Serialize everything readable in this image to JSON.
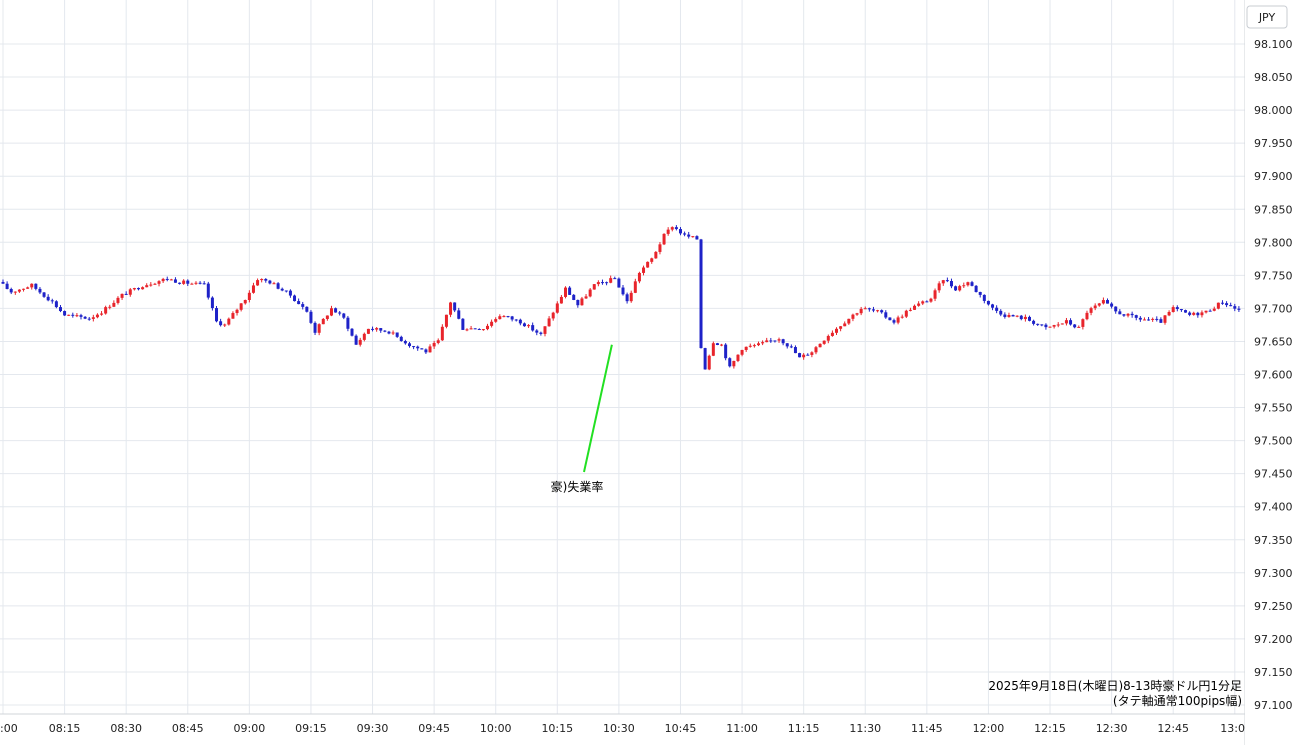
{
  "chart_data": {
    "type": "candlestick",
    "title": "",
    "currency_label": "JPY",
    "caption_line1": "2025年9月18日(木曜日)8-13時豪ドル円1分足",
    "caption_line2": "(タテ軸通常100pips幅)",
    "annotation": "豪)失業率",
    "ylim": [
      97.1,
      98.1
    ],
    "y_ticks": [
      "98.100",
      "98.050",
      "98.000",
      "97.950",
      "97.900",
      "97.850",
      "97.800",
      "97.750",
      "97.700",
      "97.650",
      "97.600",
      "97.550",
      "97.500",
      "97.450",
      "97.400",
      "97.350",
      "97.300",
      "97.250",
      "97.200",
      "97.150",
      "97.100"
    ],
    "x_ticks": [
      ":00",
      "08:15",
      "08:30",
      "08:45",
      "09:00",
      "09:15",
      "09:30",
      "09:45",
      "10:00",
      "10:15",
      "10:30",
      "10:45",
      "11:00",
      "11:15",
      "11:30",
      "11:45",
      "12:00",
      "12:15",
      "12:30",
      "12:45",
      "13:0"
    ],
    "x_range_minutes": [
      480,
      781
    ],
    "annotation_time_minutes": 630,
    "annotation_price": 97.645,
    "grid": true,
    "up_color": "#e8242b",
    "down_color": "#1e22c8",
    "annotation_line_color": "#22e022",
    "key_points": [
      {
        "t": 480,
        "p": 97.74
      },
      {
        "t": 483,
        "p": 97.725
      },
      {
        "t": 488,
        "p": 97.735
      },
      {
        "t": 493,
        "p": 97.71
      },
      {
        "t": 496,
        "p": 97.69
      },
      {
        "t": 502,
        "p": 97.685
      },
      {
        "t": 505,
        "p": 97.695
      },
      {
        "t": 510,
        "p": 97.72
      },
      {
        "t": 515,
        "p": 97.735
      },
      {
        "t": 521,
        "p": 97.745
      },
      {
        "t": 524,
        "p": 97.74
      },
      {
        "t": 530,
        "p": 97.735
      },
      {
        "t": 533,
        "p": 97.68
      },
      {
        "t": 535,
        "p": 97.675
      },
      {
        "t": 540,
        "p": 97.715
      },
      {
        "t": 543,
        "p": 97.745
      },
      {
        "t": 546,
        "p": 97.74
      },
      {
        "t": 551,
        "p": 97.72
      },
      {
        "t": 555,
        "p": 97.695
      },
      {
        "t": 557,
        "p": 97.665
      },
      {
        "t": 561,
        "p": 97.7
      },
      {
        "t": 564,
        "p": 97.685
      },
      {
        "t": 567,
        "p": 97.645
      },
      {
        "t": 570,
        "p": 97.67
      },
      {
        "t": 575,
        "p": 97.665
      },
      {
        "t": 580,
        "p": 97.645
      },
      {
        "t": 584,
        "p": 97.635
      },
      {
        "t": 587,
        "p": 97.65
      },
      {
        "t": 590,
        "p": 97.71
      },
      {
        "t": 593,
        "p": 97.67
      },
      {
        "t": 598,
        "p": 97.67
      },
      {
        "t": 602,
        "p": 97.69
      },
      {
        "t": 607,
        "p": 97.68
      },
      {
        "t": 612,
        "p": 97.66
      },
      {
        "t": 615,
        "p": 97.695
      },
      {
        "t": 618,
        "p": 97.73
      },
      {
        "t": 621,
        "p": 97.705
      },
      {
        "t": 625,
        "p": 97.735
      },
      {
        "t": 630,
        "p": 97.745
      },
      {
        "t": 633,
        "p": 97.71
      },
      {
        "t": 636,
        "p": 97.755
      },
      {
        "t": 639,
        "p": 97.775
      },
      {
        "t": 642,
        "p": 97.81
      },
      {
        "t": 644,
        "p": 97.825
      },
      {
        "t": 647,
        "p": 97.81
      },
      {
        "t": 650,
        "p": 97.805
      },
      {
        "t": 651,
        "p": 97.64
      },
      {
        "t": 652,
        "p": 97.61
      },
      {
        "t": 654,
        "p": 97.65
      },
      {
        "t": 656,
        "p": 97.645
      },
      {
        "t": 658,
        "p": 97.61
      },
      {
        "t": 661,
        "p": 97.64
      },
      {
        "t": 665,
        "p": 97.645
      },
      {
        "t": 670,
        "p": 97.655
      },
      {
        "t": 673,
        "p": 97.64
      },
      {
        "t": 675,
        "p": 97.625
      },
      {
        "t": 678,
        "p": 97.635
      },
      {
        "t": 682,
        "p": 97.66
      },
      {
        "t": 686,
        "p": 97.68
      },
      {
        "t": 690,
        "p": 97.7
      },
      {
        "t": 694,
        "p": 97.695
      },
      {
        "t": 698,
        "p": 97.68
      },
      {
        "t": 702,
        "p": 97.7
      },
      {
        "t": 707,
        "p": 97.715
      },
      {
        "t": 710,
        "p": 97.745
      },
      {
        "t": 713,
        "p": 97.73
      },
      {
        "t": 716,
        "p": 97.74
      },
      {
        "t": 719,
        "p": 97.72
      },
      {
        "t": 722,
        "p": 97.7
      },
      {
        "t": 725,
        "p": 97.69
      },
      {
        "t": 730,
        "p": 97.685
      },
      {
        "t": 735,
        "p": 97.67
      },
      {
        "t": 740,
        "p": 97.68
      },
      {
        "t": 743,
        "p": 97.67
      },
      {
        "t": 745,
        "p": 97.695
      },
      {
        "t": 749,
        "p": 97.71
      },
      {
        "t": 752,
        "p": 97.695
      },
      {
        "t": 757,
        "p": 97.685
      },
      {
        "t": 763,
        "p": 97.68
      },
      {
        "t": 766,
        "p": 97.7
      },
      {
        "t": 770,
        "p": 97.69
      },
      {
        "t": 774,
        "p": 97.695
      },
      {
        "t": 778,
        "p": 97.71
      },
      {
        "t": 781,
        "p": 97.7
      },
      {
        "t": 784,
        "p": 97.695
      },
      {
        "t": 788,
        "p": 97.7
      },
      {
        "t": 790,
        "p": 97.67
      },
      {
        "t": 794,
        "p": 97.665
      },
      {
        "t": 798,
        "p": 97.68
      },
      {
        "t": 802,
        "p": 97.685
      },
      {
        "t": 806,
        "p": 97.69
      },
      {
        "t": 809,
        "p": 97.68
      }
    ]
  }
}
